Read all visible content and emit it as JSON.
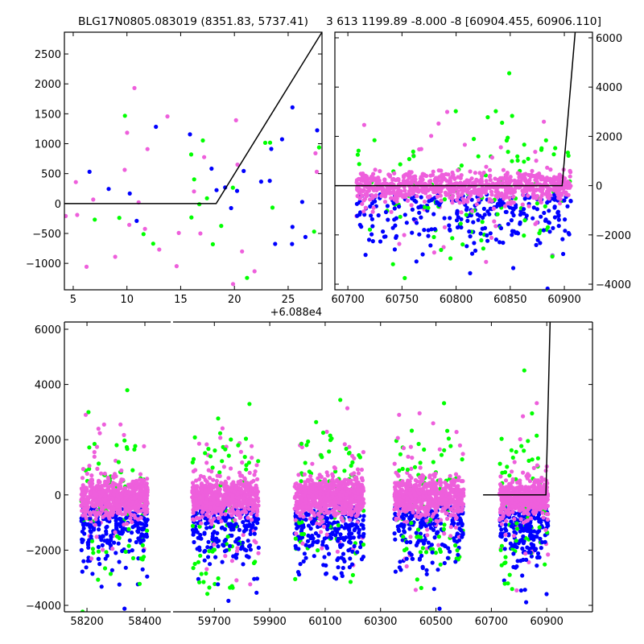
{
  "chart_data": [
    {
      "type": "scatter",
      "id": "top-left",
      "title": "BLG17N0805.083019 (8351.83, 5737.41)",
      "x_offset_label": "+6.088e4",
      "xlim": [
        4.18,
        28.15
      ],
      "ylim": [
        -1442,
        2864
      ],
      "xticks": [
        5,
        10,
        15,
        20,
        25
      ],
      "yticks": [
        -1000,
        -500,
        0,
        500,
        1000,
        1500,
        2000,
        2500
      ],
      "ytick_side": "left",
      "model_line": [
        [
          4.18,
          0
        ],
        [
          18.3,
          0
        ],
        [
          28.15,
          2864
        ]
      ],
      "clusters": [
        {
          "xrange": [
            4.2,
            28.1
          ],
          "ycenter": 300,
          "spread": 900,
          "count": 70
        }
      ]
    },
    {
      "type": "scatter",
      "id": "top-right",
      "title": "3 613 1199.89 -8.000 -8 [60904.455, 60906.110]",
      "xlim": [
        60688,
        60926
      ],
      "ylim": [
        -4228,
        6228
      ],
      "xticks": [
        60700,
        60750,
        60800,
        60850,
        60900
      ],
      "yticks": [
        -4000,
        -2000,
        0,
        2000,
        4000,
        6000
      ],
      "ytick_side": "right",
      "model_line": [
        [
          60688,
          0
        ],
        [
          60898,
          0
        ],
        [
          60910,
          6228
        ]
      ],
      "clusters": [
        {
          "xrange": [
            60708,
            60906
          ],
          "ycenter": -50,
          "spread": 300,
          "count": 900
        }
      ]
    },
    {
      "type": "scatter",
      "id": "bottom",
      "broken_x_axis": true,
      "segments": [
        {
          "xlim": [
            58122,
            58489
          ],
          "xticks": [
            58200,
            58400
          ]
        },
        {
          "xlim": [
            59551,
            61065
          ],
          "xticks": [
            59700,
            59900,
            60100,
            60300,
            60500,
            60700,
            60900
          ]
        }
      ],
      "ylim": [
        -4233,
        6262
      ],
      "yticks": [
        -4000,
        -2000,
        0,
        2000,
        4000,
        6000
      ],
      "ytick_side": "left",
      "model_line": [
        [
          60670,
          0
        ],
        [
          60897,
          0
        ],
        [
          60912,
          6262
        ]
      ],
      "clusters": [
        {
          "segment": 0,
          "xrange": [
            58180,
            58410
          ],
          "ycenter": -100,
          "spread": 350,
          "count": 700
        },
        {
          "segment": 1,
          "xrange": [
            59620,
            59860
          ],
          "ycenter": -100,
          "spread": 350,
          "count": 700
        },
        {
          "segment": 1,
          "xrange": [
            59990,
            60240
          ],
          "ycenter": -100,
          "spread": 350,
          "count": 800
        },
        {
          "segment": 1,
          "xrange": [
            60350,
            60600
          ],
          "ycenter": -100,
          "spread": 350,
          "count": 700
        },
        {
          "segment": 1,
          "xrange": [
            60730,
            60905
          ],
          "ycenter": -150,
          "spread": 300,
          "count": 600
        }
      ]
    }
  ],
  "series": [
    {
      "name": "blue",
      "color": "#0000ff"
    },
    {
      "name": "green",
      "color": "#00ff00"
    },
    {
      "name": "pink",
      "color": "#ee5fdc"
    }
  ]
}
